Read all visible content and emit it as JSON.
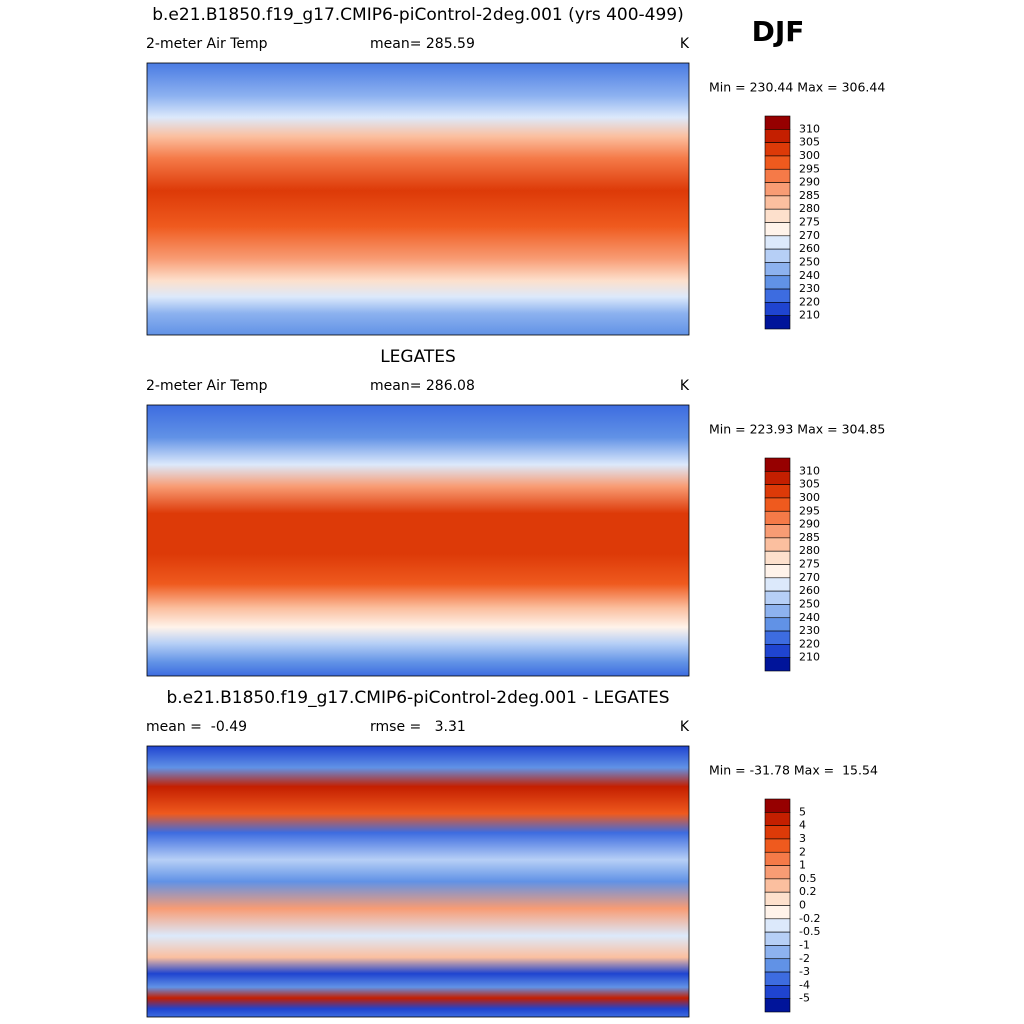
{
  "title": "b.e21.B1850.f19_g17.CMIP6-piControl-2deg.001 (yrs 400-499)",
  "season": "DJF",
  "panels": [
    {
      "left": "2-meter Air Temp",
      "center": "mean= 285.59",
      "right": "K",
      "minmax": "Min = 230.44 Max = 306.44",
      "colorbar": {
        "labels": [
          "310",
          "305",
          "300",
          "295",
          "290",
          "285",
          "280",
          "275",
          "270",
          "260",
          "250",
          "240",
          "230",
          "220",
          "210"
        ],
        "colors": [
          "#960000",
          "#c41f00",
          "#dd3a08",
          "#ef5a1e",
          "#f57a48",
          "#f89c74",
          "#fbbf9f",
          "#fde0cc",
          "#fff3ea",
          "#dce9fb",
          "#b6cff6",
          "#8db2ef",
          "#6192e6",
          "#3d6ce0",
          "#1f44d0",
          "#00149a"
        ]
      }
    },
    {
      "title": "LEGATES",
      "left": "2-meter Air Temp",
      "center": "mean= 286.08",
      "right": "K",
      "minmax": "Min = 223.93 Max = 304.85",
      "colorbar": {
        "labels": [
          "310",
          "305",
          "300",
          "295",
          "290",
          "285",
          "280",
          "275",
          "270",
          "260",
          "250",
          "240",
          "230",
          "220",
          "210"
        ],
        "colors": [
          "#960000",
          "#c41f00",
          "#dd3a08",
          "#ef5a1e",
          "#f57a48",
          "#f89c74",
          "#fbbf9f",
          "#fde0cc",
          "#fff3ea",
          "#dce9fb",
          "#b6cff6",
          "#8db2ef",
          "#6192e6",
          "#3d6ce0",
          "#1f44d0",
          "#00149a"
        ]
      }
    },
    {
      "title": "b.e21.B1850.f19_g17.CMIP6-piControl-2deg.001 - LEGATES",
      "left": "mean =  -0.49",
      "center": "rmse =   3.31",
      "right": "K",
      "minmax": "Min = -31.78 Max =  15.54",
      "colorbar": {
        "labels": [
          "5",
          "4",
          "3",
          "2",
          "1",
          "0.5",
          "0.2",
          "0",
          "-0.2",
          "-0.5",
          "-1",
          "-2",
          "-3",
          "-4",
          "-5"
        ],
        "colors": [
          "#960000",
          "#c41f00",
          "#dd3a08",
          "#ef5a1e",
          "#f57a48",
          "#f89c74",
          "#fbbf9f",
          "#fde0cc",
          "#fff3ea",
          "#dce9fb",
          "#b6cff6",
          "#8db2ef",
          "#6192e6",
          "#3d6ce0",
          "#1f44d0",
          "#00149a"
        ]
      }
    }
  ]
}
